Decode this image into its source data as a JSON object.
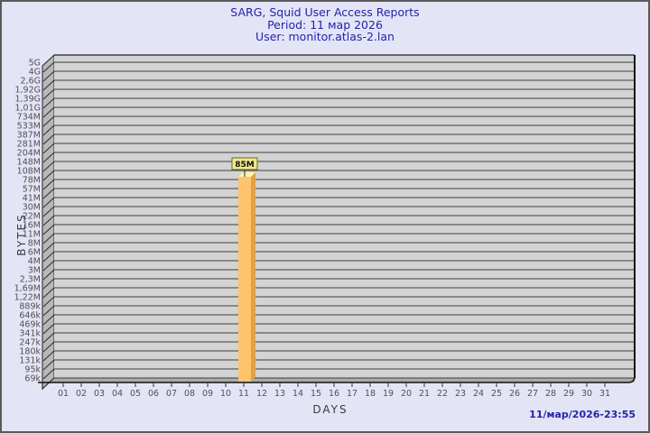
{
  "title": {
    "line1": "SARG, Squid User Access Reports",
    "line2": "Period: 11 мар 2026",
    "line3": "User: monitor.atlas-2.lan"
  },
  "footer": {
    "timestamp": "11/мар/2026-23:55"
  },
  "chart_data": {
    "type": "bar",
    "title": "SARG, Squid User Access Reports",
    "subtitle": "Period: 11 мар 2026",
    "user_line": "User: monitor.atlas-2.lan",
    "xlabel": "DAYS",
    "ylabel": "BYTES",
    "y_scale": "log",
    "grid": "horizontal",
    "x_categories": [
      "01",
      "02",
      "03",
      "04",
      "05",
      "06",
      "07",
      "08",
      "09",
      "10",
      "11",
      "12",
      "13",
      "14",
      "15",
      "16",
      "17",
      "18",
      "19",
      "20",
      "21",
      "22",
      "23",
      "24",
      "25",
      "26",
      "27",
      "28",
      "29",
      "30",
      "31"
    ],
    "y_tick_labels": [
      "5G",
      "4G",
      "2,6G",
      "1,92G",
      "1,39G",
      "1,01G",
      "734M",
      "533M",
      "387M",
      "281M",
      "204M",
      "148M",
      "108M",
      "78M",
      "57M",
      "41M",
      "30M",
      "22M",
      "16M",
      "11M",
      "8M",
      "6M",
      "4M",
      "3M",
      "2,3M",
      "1,69M",
      "1,22M",
      "889k",
      "646k",
      "469k",
      "341k",
      "247k",
      "180k",
      "131k",
      "95k",
      "69k"
    ],
    "bars": [
      {
        "day": "11",
        "value_label": "85M"
      }
    ],
    "colors": {
      "page_bg": "#e4e4f7",
      "plot_bg": "#d3d3d3",
      "wall": "#b8b8b8",
      "floor": "#ababab",
      "grid_line": "#3f3f3f",
      "axis_line": "#111111",
      "bar_face": "#fdc46b",
      "bar_side": "#dfa346",
      "bar_top": "#fff3b2",
      "value_box_bg": "#f0e68c",
      "value_box_border": "#6b6b1f",
      "title_text": "#2323ab",
      "tick_text": "#505050"
    }
  }
}
